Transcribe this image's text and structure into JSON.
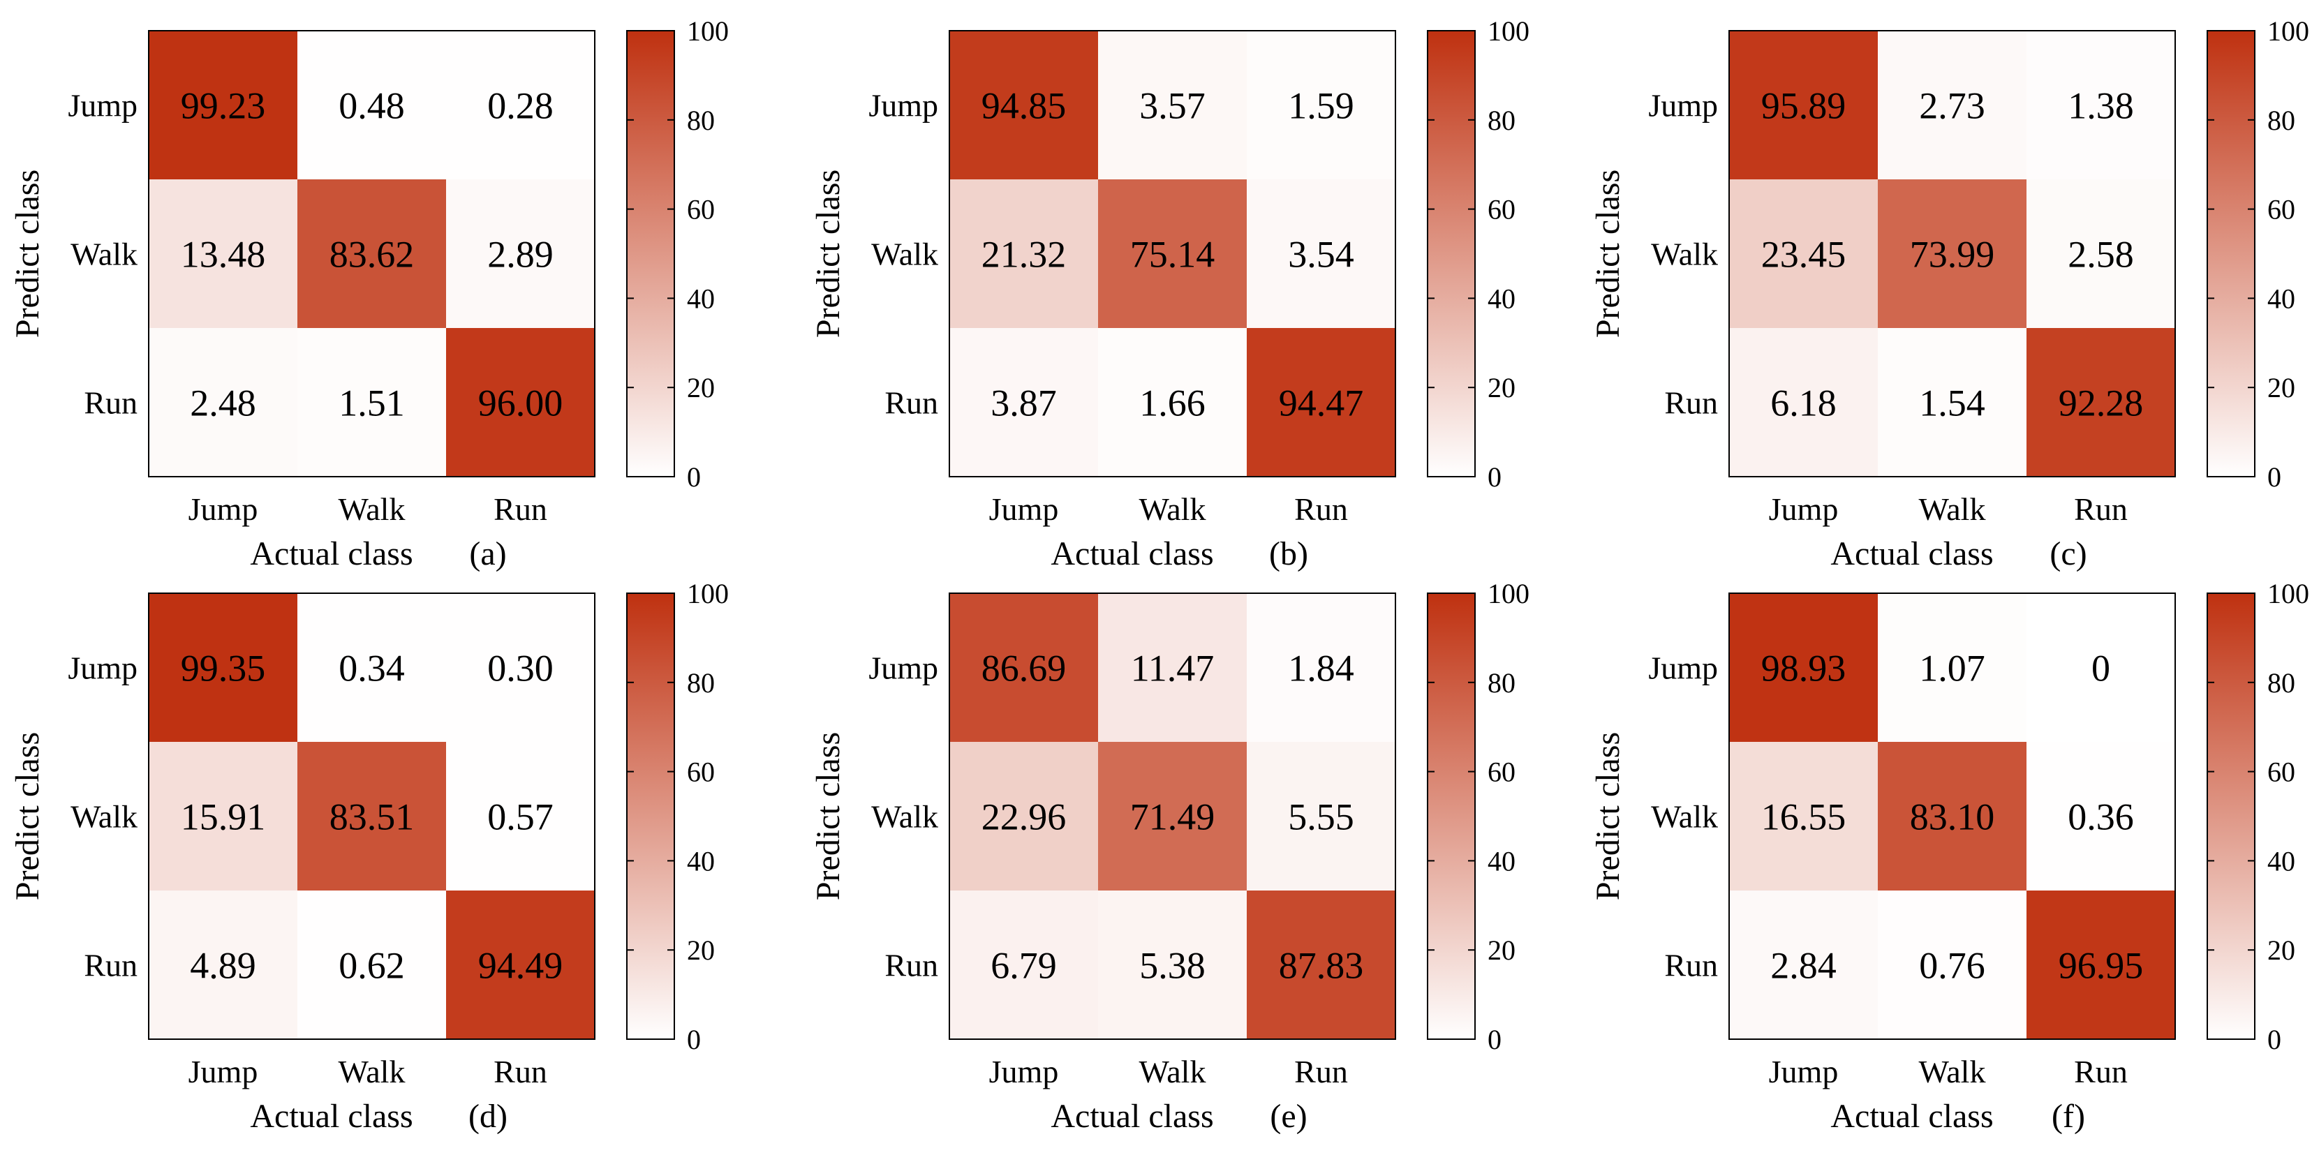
{
  "chart_data": [
    {
      "type": "heatmap",
      "panel_label": "(a)",
      "xlabel": "Actual class",
      "ylabel": "Predict class",
      "x_categories": [
        "Jump",
        "Walk",
        "Run"
      ],
      "y_categories": [
        "Jump",
        "Walk",
        "Run"
      ],
      "matrix": [
        [
          99.23,
          0.48,
          0.28
        ],
        [
          13.48,
          83.62,
          2.89
        ],
        [
          2.48,
          1.51,
          96.0
        ]
      ],
      "cell_labels": [
        [
          "99.23",
          "0.48",
          "0.28"
        ],
        [
          "13.48",
          "83.62",
          "2.89"
        ],
        [
          "2.48",
          "1.51",
          "96.00"
        ]
      ],
      "colorbar": {
        "range": [
          0,
          100
        ],
        "ticks": [
          "0",
          "20",
          "40",
          "60",
          "80",
          "100"
        ]
      }
    },
    {
      "type": "heatmap",
      "panel_label": "(b)",
      "xlabel": "Actual class",
      "ylabel": "Predict class",
      "x_categories": [
        "Jump",
        "Walk",
        "Run"
      ],
      "y_categories": [
        "Jump",
        "Walk",
        "Run"
      ],
      "matrix": [
        [
          94.85,
          3.57,
          1.59
        ],
        [
          21.32,
          75.14,
          3.54
        ],
        [
          3.87,
          1.66,
          94.47
        ]
      ],
      "cell_labels": [
        [
          "94.85",
          "3.57",
          "1.59"
        ],
        [
          "21.32",
          "75.14",
          "3.54"
        ],
        [
          "3.87",
          "1.66",
          "94.47"
        ]
      ],
      "colorbar": {
        "range": [
          0,
          100
        ],
        "ticks": [
          "0",
          "20",
          "40",
          "60",
          "80",
          "100"
        ]
      }
    },
    {
      "type": "heatmap",
      "panel_label": "(c)",
      "xlabel": "Actual class",
      "ylabel": "Predict class",
      "x_categories": [
        "Jump",
        "Walk",
        "Run"
      ],
      "y_categories": [
        "Jump",
        "Walk",
        "Run"
      ],
      "matrix": [
        [
          95.89,
          2.73,
          1.38
        ],
        [
          23.45,
          73.99,
          2.58
        ],
        [
          6.18,
          1.54,
          92.28
        ]
      ],
      "cell_labels": [
        [
          "95.89",
          "2.73",
          "1.38"
        ],
        [
          "23.45",
          "73.99",
          "2.58"
        ],
        [
          "6.18",
          "1.54",
          "92.28"
        ]
      ],
      "colorbar": {
        "range": [
          0,
          100
        ],
        "ticks": [
          "0",
          "20",
          "40",
          "60",
          "80",
          "100"
        ]
      }
    },
    {
      "type": "heatmap",
      "panel_label": "(d)",
      "xlabel": "Actual class",
      "ylabel": "Predict class",
      "x_categories": [
        "Jump",
        "Walk",
        "Run"
      ],
      "y_categories": [
        "Jump",
        "Walk",
        "Run"
      ],
      "matrix": [
        [
          99.35,
          0.34,
          0.3
        ],
        [
          15.91,
          83.51,
          0.57
        ],
        [
          4.89,
          0.62,
          94.49
        ]
      ],
      "cell_labels": [
        [
          "99.35",
          "0.34",
          "0.30"
        ],
        [
          "15.91",
          "83.51",
          "0.57"
        ],
        [
          "4.89",
          "0.62",
          "94.49"
        ]
      ],
      "colorbar": {
        "range": [
          0,
          100
        ],
        "ticks": [
          "0",
          "20",
          "40",
          "60",
          "80",
          "100"
        ]
      }
    },
    {
      "type": "heatmap",
      "panel_label": "(e)",
      "xlabel": "Actual class",
      "ylabel": "Predict class",
      "x_categories": [
        "Jump",
        "Walk",
        "Run"
      ],
      "y_categories": [
        "Jump",
        "Walk",
        "Run"
      ],
      "matrix": [
        [
          86.69,
          11.47,
          1.84
        ],
        [
          22.96,
          71.49,
          5.55
        ],
        [
          6.79,
          5.38,
          87.83
        ]
      ],
      "cell_labels": [
        [
          "86.69",
          "11.47",
          "1.84"
        ],
        [
          "22.96",
          "71.49",
          "5.55"
        ],
        [
          "6.79",
          "5.38",
          "87.83"
        ]
      ],
      "colorbar": {
        "range": [
          0,
          100
        ],
        "ticks": [
          "0",
          "20",
          "40",
          "60",
          "80",
          "100"
        ]
      }
    },
    {
      "type": "heatmap",
      "panel_label": "(f)",
      "xlabel": "Actual class",
      "ylabel": "Predict class",
      "x_categories": [
        "Jump",
        "Walk",
        "Run"
      ],
      "y_categories": [
        "Jump",
        "Walk",
        "Run"
      ],
      "matrix": [
        [
          98.93,
          1.07,
          0
        ],
        [
          16.55,
          83.1,
          0.36
        ],
        [
          2.84,
          0.76,
          96.95
        ]
      ],
      "cell_labels": [
        [
          "98.93",
          "1.07",
          "0"
        ],
        [
          "16.55",
          "83.10",
          "0.36"
        ],
        [
          "2.84",
          "0.76",
          "96.95"
        ]
      ],
      "colorbar": {
        "range": [
          0,
          100
        ],
        "ticks": [
          "0",
          "20",
          "40",
          "60",
          "80",
          "100"
        ]
      }
    }
  ],
  "colors": {
    "low": "#ffffff",
    "high": "#bf3110",
    "axis": "#000000",
    "text": "#000000"
  }
}
